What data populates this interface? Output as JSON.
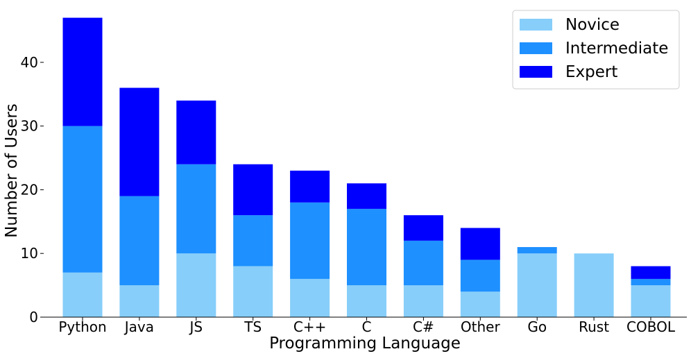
{
  "chart_data": {
    "type": "bar",
    "stacked": true,
    "categories": [
      "Python",
      "Java",
      "JS",
      "TS",
      "C++",
      "C",
      "C#",
      "Other",
      "Go",
      "Rust",
      "COBOL"
    ],
    "series": [
      {
        "name": "Novice",
        "color": "#87cefa",
        "values": [
          7,
          5,
          10,
          8,
          6,
          5,
          5,
          4,
          10,
          10,
          5
        ]
      },
      {
        "name": "Intermediate",
        "color": "#1e90ff",
        "values": [
          23,
          14,
          14,
          8,
          12,
          12,
          7,
          5,
          1,
          0,
          1
        ]
      },
      {
        "name": "Expert",
        "color": "#0000ff",
        "values": [
          17,
          17,
          10,
          8,
          5,
          4,
          4,
          5,
          0,
          0,
          2
        ]
      }
    ],
    "title": "",
    "xlabel": "Programming Language",
    "ylabel": "Number of Users",
    "ylim": [
      0,
      49.35
    ],
    "yticks": [
      0,
      10,
      20,
      30,
      40
    ],
    "grid": false,
    "legend_position": "top-right"
  }
}
